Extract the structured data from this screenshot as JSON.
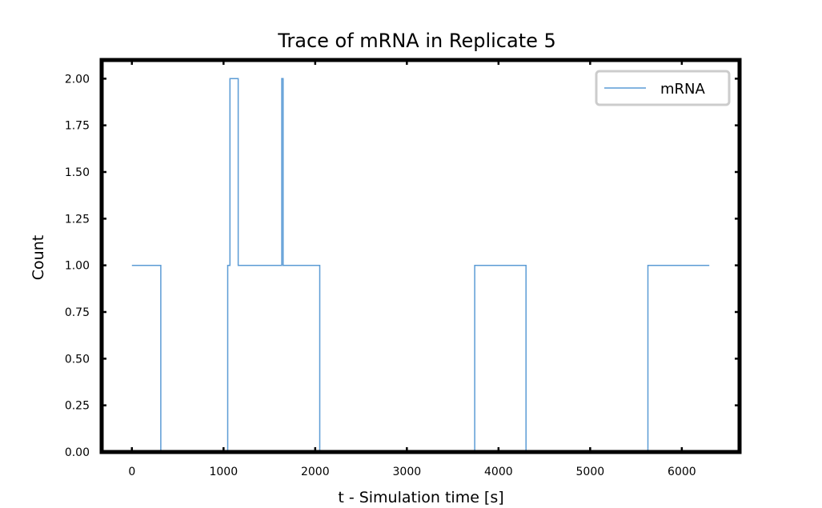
{
  "chart_data": {
    "type": "line",
    "step": true,
    "title": "Trace of mRNA in Replicate 5",
    "xlabel": "t - Simulation time [s]",
    "ylabel": "Count",
    "xlim": [
      -330,
      6630
    ],
    "ylim": [
      0,
      2.1
    ],
    "xticks": [
      0,
      1000,
      2000,
      3000,
      4000,
      5000,
      6000
    ],
    "xtick_labels": [
      "0",
      "1000",
      "2000",
      "3000",
      "4000",
      "5000",
      "6000"
    ],
    "yticks": [
      0,
      0.25,
      0.5,
      0.75,
      1.0,
      1.25,
      1.5,
      1.75,
      2.0
    ],
    "ytick_labels": [
      "0.00",
      "0.25",
      "0.50",
      "0.75",
      "1.00",
      "1.25",
      "1.50",
      "1.75",
      "2.00"
    ],
    "grid": false,
    "legend_position": "top-right",
    "series": [
      {
        "name": "mRNA",
        "color": "#5b9bd5",
        "x": [
          0,
          315,
          1045,
          1070,
          1160,
          1635,
          1650,
          2050,
          3740,
          4300,
          5630,
          6300
        ],
        "y": [
          1,
          0,
          1,
          2,
          1,
          2,
          1,
          0,
          1,
          0,
          1,
          1
        ]
      }
    ]
  }
}
